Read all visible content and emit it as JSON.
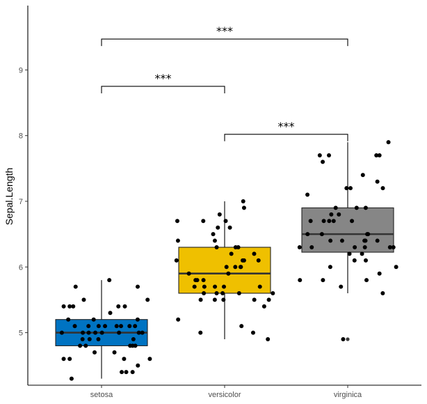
{
  "chart_data": {
    "type": "box",
    "title": "",
    "xlabel": "",
    "ylabel": "Sepal.Length",
    "ylim": [
      4.2,
      9.98
    ],
    "yticks": [
      5,
      6,
      7,
      8,
      9
    ],
    "grid": false,
    "legend": "none",
    "categories": [
      "setosa",
      "versicolor",
      "virginica"
    ],
    "colors": [
      "#0073C2",
      "#EFC000",
      "#868686"
    ],
    "boxes": [
      {
        "category": "setosa",
        "whisker_low": 4.3,
        "q1": 4.8,
        "median": 5.0,
        "q3": 5.2,
        "whisker_high": 5.8,
        "outliers": []
      },
      {
        "category": "versicolor",
        "whisker_low": 4.9,
        "q1": 5.6,
        "median": 5.9,
        "q3": 6.3,
        "whisker_high": 7.0,
        "outliers": []
      },
      {
        "category": "virginica",
        "whisker_low": 5.6,
        "q1": 6.225,
        "median": 6.5,
        "q3": 6.9,
        "whisker_high": 7.9,
        "outliers": [
          4.9
        ]
      }
    ],
    "points": {
      "setosa": [
        5.1,
        4.9,
        4.7,
        4.6,
        5.0,
        5.4,
        4.6,
        5.0,
        4.4,
        4.9,
        5.4,
        4.8,
        4.8,
        4.3,
        5.8,
        5.7,
        5.4,
        5.1,
        5.7,
        5.1,
        5.4,
        5.1,
        4.6,
        5.1,
        4.8,
        5.0,
        5.0,
        5.2,
        5.2,
        4.7,
        4.8,
        5.4,
        5.2,
        5.5,
        4.9,
        5.0,
        5.5,
        4.9,
        4.4,
        5.1,
        5.0,
        4.5,
        4.4,
        5.0,
        5.1,
        4.8,
        5.1,
        4.6,
        5.3,
        5.0
      ],
      "versicolor": [
        7.0,
        6.4,
        6.9,
        5.5,
        6.5,
        5.7,
        6.3,
        4.9,
        6.6,
        5.2,
        5.0,
        5.9,
        6.0,
        6.1,
        5.6,
        6.7,
        5.6,
        5.8,
        6.2,
        5.6,
        5.9,
        6.1,
        6.3,
        6.1,
        6.4,
        6.6,
        6.8,
        6.7,
        6.0,
        5.7,
        5.5,
        5.5,
        5.8,
        6.0,
        5.4,
        6.0,
        6.7,
        6.3,
        5.6,
        5.5,
        5.5,
        6.1,
        5.8,
        5.0,
        5.6,
        5.7,
        5.7,
        6.2,
        5.1,
        5.7
      ],
      "virginica": [
        6.3,
        5.8,
        7.1,
        6.3,
        6.5,
        7.6,
        4.9,
        7.3,
        6.7,
        7.2,
        6.5,
        6.4,
        6.8,
        5.7,
        5.8,
        6.4,
        6.5,
        7.7,
        7.7,
        6.0,
        6.9,
        5.6,
        7.7,
        6.3,
        6.7,
        7.2,
        6.2,
        6.1,
        6.4,
        7.2,
        7.4,
        7.9,
        6.4,
        6.3,
        6.1,
        7.7,
        6.3,
        6.4,
        6.0,
        6.9,
        6.7,
        6.9,
        5.8,
        6.8,
        6.7,
        6.7,
        6.3,
        6.5,
        6.2,
        5.9
      ]
    },
    "comparisons": [
      {
        "groups": [
          "setosa",
          "versicolor"
        ],
        "label": "***",
        "y": 8.75
      },
      {
        "groups": [
          "setosa",
          "virginica"
        ],
        "label": "***",
        "y": 9.47
      },
      {
        "groups": [
          "versicolor",
          "virginica"
        ],
        "label": "***",
        "y": 8.02
      }
    ]
  }
}
